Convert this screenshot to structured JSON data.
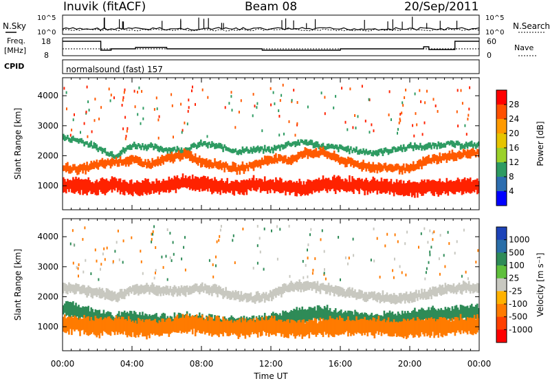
{
  "header": {
    "station": "Inuvik (fitACF)",
    "beam": "Beam 08",
    "date": "20/Sep/2011"
  },
  "top_panels": {
    "nsky_label": "N.Sky",
    "nsearch_label": "N.Search",
    "freq_label_1": "Freq.",
    "freq_label_2": "[MHz]",
    "nave_label": "Nave",
    "cpid_label": "CPID",
    "cpid_value": "normalsound (fast) 157",
    "noise_ticks_left": [
      "10^5",
      "10^0"
    ],
    "noise_ticks_right": [
      "10^5",
      "10^0"
    ],
    "freq_ticks": [
      "18",
      "8"
    ],
    "nave_ticks": [
      "60",
      "0"
    ]
  },
  "colorbars": {
    "power": {
      "label": "Power [dB]",
      "ticks": [
        "28",
        "24",
        "20",
        "16",
        "12",
        "8",
        "4"
      ],
      "colors": [
        "#ff0000",
        "#ff5000",
        "#ff9a00",
        "#e6c400",
        "#9bd12a",
        "#2e9b62",
        "#2d6eb0",
        "#0000ff"
      ]
    },
    "velocity": {
      "label": "Velocity [m s⁻¹]",
      "ticks": [
        "1000",
        "500",
        "100",
        "25",
        "-25",
        "-100",
        "-500",
        "-1000"
      ],
      "colors": [
        "#1d43b8",
        "#2a6ea8",
        "#2e8b57",
        "#5fbf3c",
        "#c8c8c0",
        "#ffb200",
        "#ff7b00",
        "#ff4000",
        "#ff0000"
      ]
    }
  },
  "chart_data": [
    {
      "type": "heatmap",
      "panel": "power",
      "ylabel": "Slant Range [km]",
      "yticks": [
        1000,
        2000,
        3000,
        4000
      ],
      "ylim": [
        200,
        4600
      ],
      "xlim": [
        "00:00",
        "24:00"
      ],
      "xticks": [
        "00:00",
        "04:00",
        "08:00",
        "12:00",
        "16:00",
        "20:00",
        "00:00"
      ],
      "xticks_hours": [
        0,
        4,
        8,
        12,
        16,
        20,
        24
      ],
      "bands": [
        {
          "color": "#ff2200",
          "center_km": [
            1000,
            1000,
            950,
            1050,
            900,
            950,
            1000,
            1150,
            1050,
            1000,
            950,
            1050,
            1000,
            950,
            900,
            1050,
            1050,
            1000,
            1000,
            950,
            900,
            950,
            950,
            1000,
            1000
          ],
          "width_km": 420
        },
        {
          "color": "#ff5a00",
          "center_km": [
            1600,
            1550,
            1700,
            1800,
            1850,
            1700,
            1900,
            2050,
            1800,
            1700,
            1550,
            1700,
            1900,
            1850,
            2100,
            2100,
            1850,
            1700,
            1600,
            1600,
            1550,
            1850,
            1950,
            2050,
            2100
          ],
          "width_km": 260
        },
        {
          "color": "#2e9b62",
          "center_km": [
            2600,
            2500,
            2250,
            2000,
            2350,
            2300,
            2200,
            2200,
            2400,
            2300,
            2150,
            2200,
            2200,
            2400,
            2450,
            2300,
            2250,
            2150,
            2100,
            2200,
            2300,
            2300,
            2400,
            2350,
            2350
          ],
          "width_km": 160
        }
      ]
    },
    {
      "type": "heatmap",
      "panel": "velocity",
      "ylabel": "Slant Range [km]",
      "yticks": [
        1000,
        2000,
        3000,
        4000
      ],
      "ylim": [
        200,
        4600
      ],
      "xlim": [
        "00:00",
        "24:00"
      ],
      "xticks": [
        "00:00",
        "04:00",
        "08:00",
        "12:00",
        "16:00",
        "20:00",
        "00:00"
      ],
      "xticks_hours": [
        0,
        4,
        8,
        12,
        16,
        20,
        24
      ],
      "xlabel": "Time UT",
      "bands": [
        {
          "color": "#ff7b00",
          "center_km": [
            1100,
            1050,
            1000,
            1050,
            950,
            950,
            1000,
            1100,
            1050,
            1000,
            950,
            1000,
            1000,
            950,
            950,
            1000,
            1000,
            1000,
            1000,
            950,
            950,
            1000,
            1000,
            1050,
            1050
          ],
          "width_km": 520
        },
        {
          "color": "#2e8b57",
          "center_km": [
            1600,
            1500,
            1300,
            1200,
            1300,
            1200,
            1150,
            1200,
            1150,
            1100,
            1100,
            1100,
            1200,
            1300,
            1400,
            1450,
            1300,
            1250,
            1200,
            1250,
            1350,
            1400,
            1400,
            1450,
            1500
          ],
          "width_km": 420
        },
        {
          "color": "#c8c8c0",
          "center_km": [
            2300,
            2250,
            2100,
            2000,
            2250,
            2250,
            2200,
            2200,
            2300,
            2200,
            2000,
            1950,
            2050,
            2300,
            2400,
            2300,
            2150,
            2050,
            2000,
            1950,
            2000,
            2100,
            2250,
            2300,
            2300
          ],
          "width_km": 280
        }
      ]
    }
  ]
}
